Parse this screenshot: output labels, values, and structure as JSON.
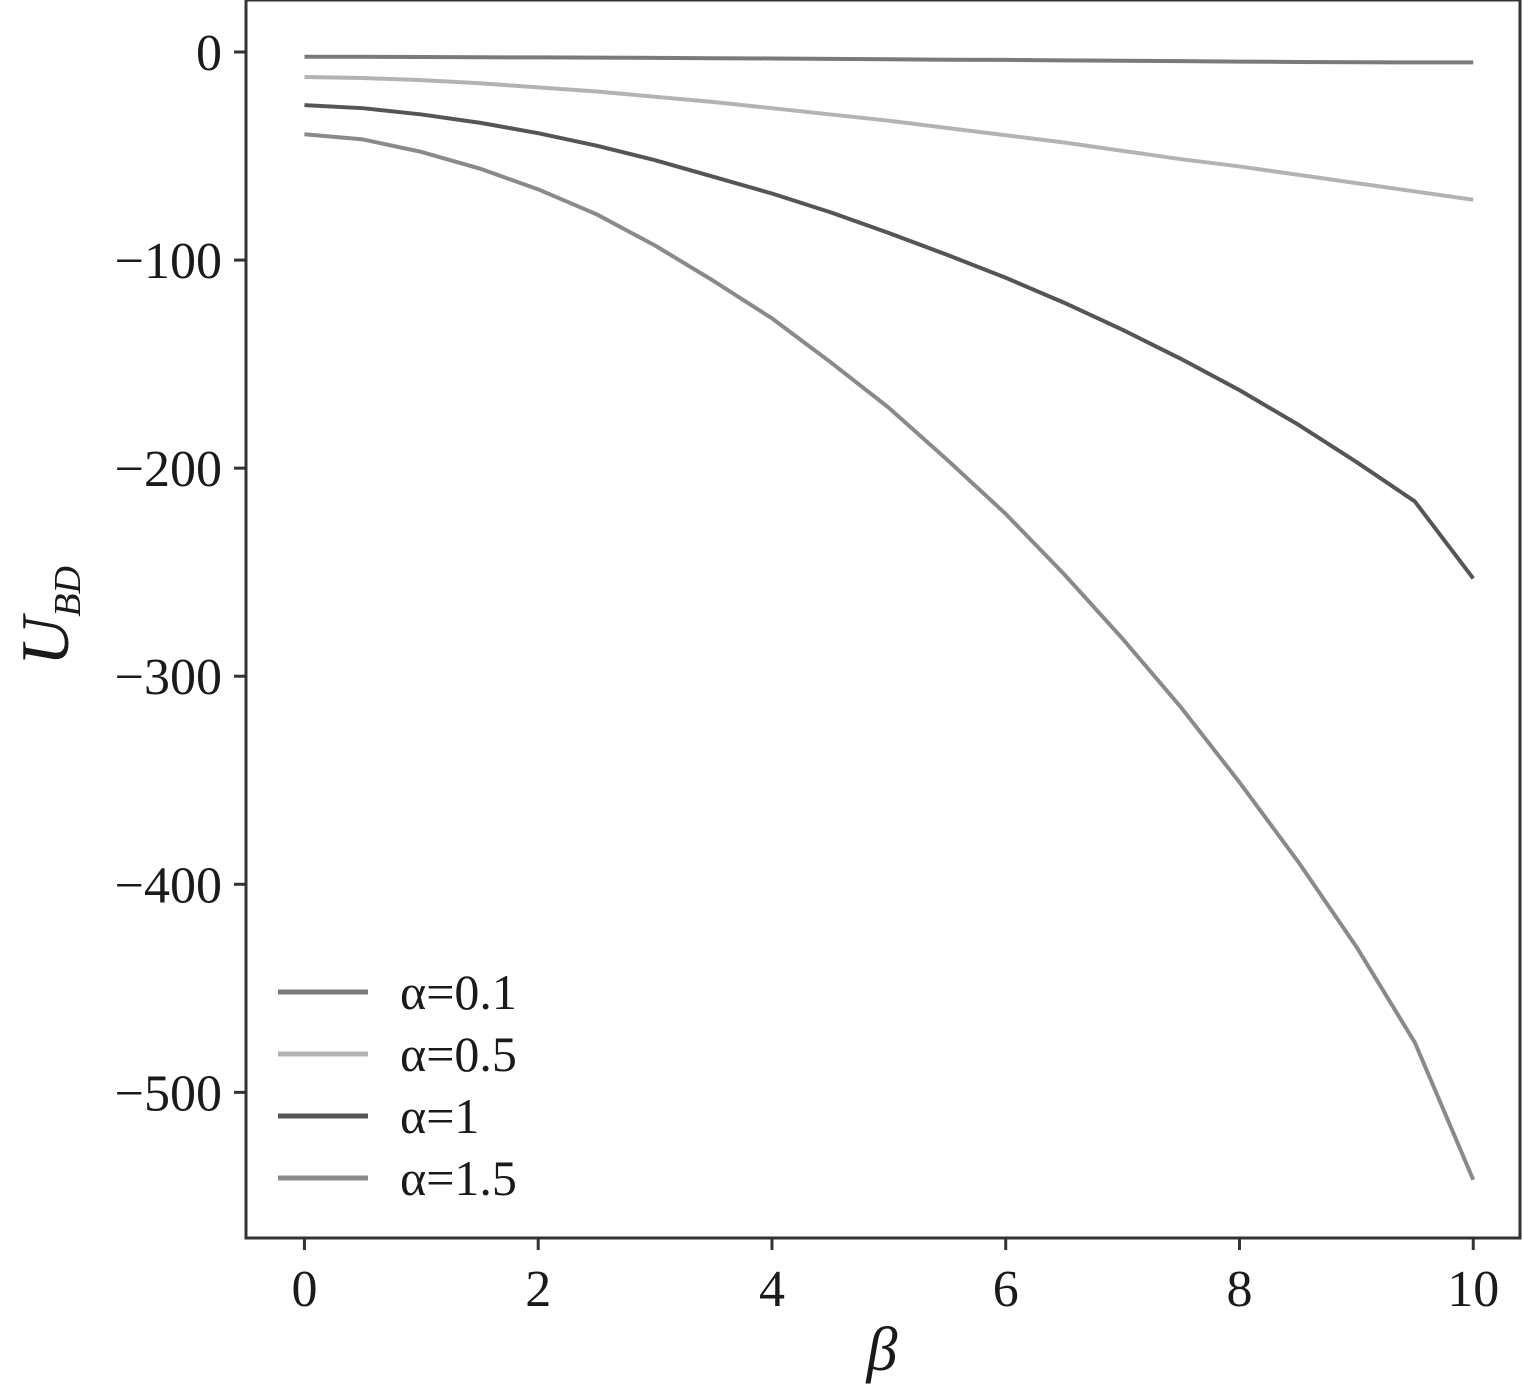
{
  "chart_data": {
    "type": "line",
    "xlabel": "β",
    "ylabel": "U",
    "ylabel_sub": "BD",
    "xlim": [
      -0.5,
      10.4
    ],
    "ylim": [
      -570,
      25
    ],
    "xticks": [
      0,
      2,
      4,
      6,
      8,
      10
    ],
    "yticks": [
      0,
      -100,
      -200,
      -300,
      -400,
      -500
    ],
    "ytick_labels": [
      "0",
      "−100",
      "−200",
      "−300",
      "−400",
      "−500"
    ],
    "grid": false,
    "legend_position": "lower-left",
    "x": [
      0,
      0.5,
      1,
      1.5,
      2,
      2.5,
      3,
      3.5,
      4,
      4.5,
      5,
      5.5,
      6,
      6.5,
      7,
      7.5,
      8,
      8.5,
      9,
      9.5,
      10
    ],
    "series": [
      {
        "name": "α=0.1",
        "color": "#7a7a7a",
        "values": [
          -2.3,
          -2.3,
          -2.4,
          -2.5,
          -2.6,
          -2.7,
          -2.8,
          -3.0,
          -3.1,
          -3.3,
          -3.5,
          -3.7,
          -3.8,
          -4.0,
          -4.2,
          -4.4,
          -4.6,
          -4.8,
          -4.9,
          -5.0,
          -5.0
        ]
      },
      {
        "name": "α=0.5",
        "color": "#b3b3b3",
        "values": [
          -12,
          -12.5,
          -13.5,
          -15,
          -17,
          -19,
          -21.5,
          -24,
          -27,
          -30,
          -33,
          -36.5,
          -40,
          -43.5,
          -47.5,
          -51.5,
          -55,
          -59,
          -63,
          -67,
          -71
        ]
      },
      {
        "name": "α=1",
        "color": "#555555",
        "values": [
          -25.5,
          -27,
          -30,
          -34,
          -39,
          -45,
          -52,
          -60,
          -68,
          -77,
          -87,
          -97.5,
          -108.5,
          -120.5,
          -133.5,
          -147.5,
          -162.5,
          -179,
          -197,
          -216,
          -253
        ]
      },
      {
        "name": "α=1.5",
        "color": "#8a8a8a",
        "values": [
          -39.5,
          -42,
          -48,
          -56,
          -66,
          -78,
          -93,
          -110,
          -128,
          -149,
          -171,
          -196,
          -222,
          -251,
          -282,
          -315,
          -351,
          -389,
          -430,
          -476,
          -542
        ]
      }
    ]
  }
}
